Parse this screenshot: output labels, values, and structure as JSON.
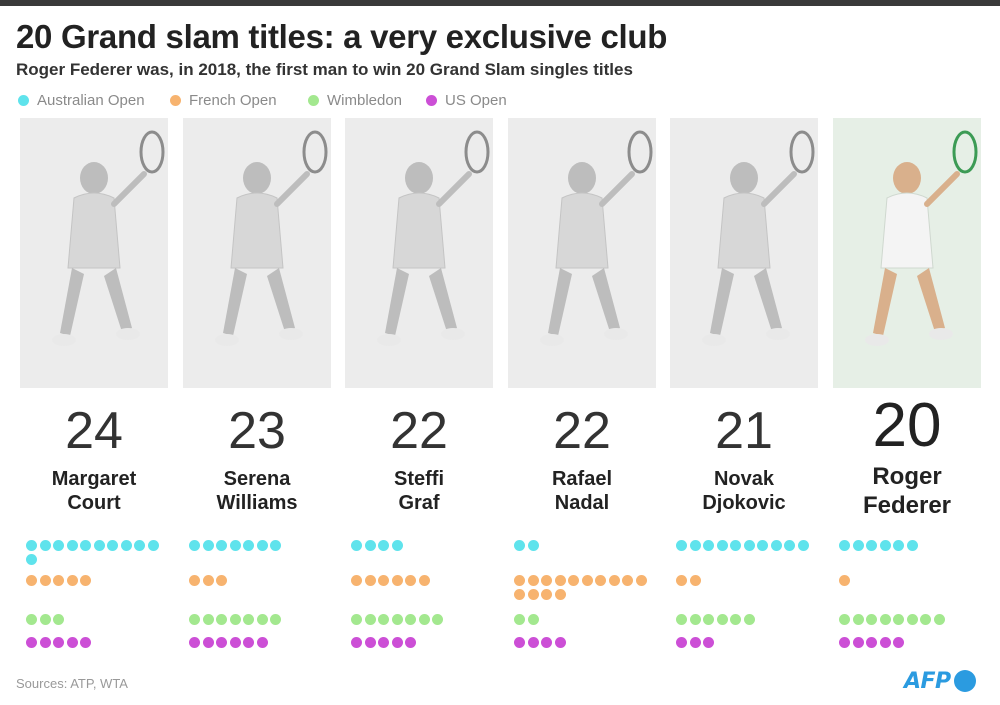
{
  "title": "20 Grand slam titles: a very exclusive club",
  "subtitle": "Roger Federer was, in 2018, the first man to win 20 Grand Slam singles titles",
  "legend": [
    {
      "label": "Australian Open",
      "color": "#5fe3ec"
    },
    {
      "label": "French Open",
      "color": "#f7b36f"
    },
    {
      "label": "Wimbledon",
      "color": "#a3e88f"
    },
    {
      "label": "US Open",
      "color": "#cc4fd6"
    }
  ],
  "source": "Sources: ATP, WTA",
  "logo": "AFP",
  "chart_data": {
    "type": "bar",
    "categories": [
      "Australian Open",
      "French Open",
      "Wimbledon",
      "US Open"
    ],
    "players": [
      {
        "name": "Margaret Court",
        "name_line1": "Margaret",
        "name_line2": "Court",
        "total": 24,
        "titles": [
          11,
          5,
          3,
          5
        ]
      },
      {
        "name": "Serena Williams",
        "name_line1": "Serena",
        "name_line2": "Williams",
        "total": 23,
        "titles": [
          7,
          3,
          7,
          6
        ]
      },
      {
        "name": "Steffi Graf",
        "name_line1": "Steffi",
        "name_line2": "Graf",
        "total": 22,
        "titles": [
          4,
          6,
          7,
          5
        ]
      },
      {
        "name": "Rafael Nadal",
        "name_line1": "Rafael",
        "name_line2": "Nadal",
        "total": 22,
        "titles": [
          2,
          14,
          2,
          4
        ]
      },
      {
        "name": "Novak Djokovic",
        "name_line1": "Novak",
        "name_line2": "Djokovic",
        "total": 21,
        "titles": [
          10,
          2,
          6,
          3
        ]
      },
      {
        "name": "Roger Federer",
        "name_line1": "Roger",
        "name_line2": "Federer",
        "total": 20,
        "titles": [
          6,
          1,
          8,
          5
        ],
        "highlight": true
      }
    ]
  }
}
